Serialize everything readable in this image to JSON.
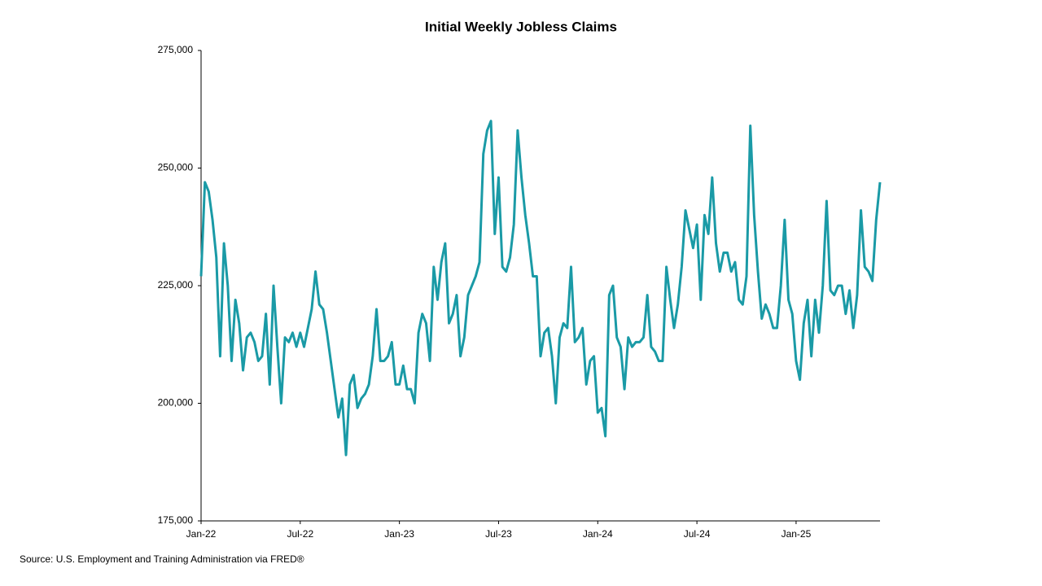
{
  "chart_data": {
    "type": "line",
    "title": "Initial Weekly Jobless Claims",
    "source": "Source: U.S. Employment and Training Administration via FRED®",
    "color": "#1a9aa6",
    "categories": [
      "Jan-22",
      null,
      null,
      null,
      null,
      null,
      null,
      null,
      null,
      null,
      null,
      null,
      null,
      null,
      null,
      null,
      null,
      null,
      null,
      null,
      null,
      null,
      null,
      null,
      null,
      null,
      "Jul-22",
      null,
      null,
      null,
      null,
      null,
      null,
      null,
      null,
      null,
      null,
      null,
      null,
      null,
      null,
      null,
      null,
      null,
      null,
      null,
      null,
      null,
      null,
      null,
      null,
      null,
      "Jan-23",
      null,
      null,
      null,
      null,
      null,
      null,
      null,
      null,
      null,
      null,
      null,
      null,
      null,
      null,
      null,
      null,
      null,
      null,
      null,
      null,
      null,
      null,
      null,
      null,
      null,
      "Jul-23",
      null,
      null,
      null,
      null,
      null,
      null,
      null,
      null,
      null,
      null,
      null,
      null,
      null,
      null,
      null,
      null,
      null,
      null,
      null,
      null,
      null,
      null,
      null,
      null,
      null,
      "Jan-24",
      null,
      null,
      null,
      null,
      null,
      null,
      null,
      null,
      null,
      null,
      null,
      null,
      null,
      null,
      null,
      null,
      null,
      null,
      null,
      null,
      null,
      null,
      null,
      null,
      null,
      "Jul-24",
      null,
      null,
      null,
      null,
      null,
      null,
      null,
      null,
      null,
      null,
      null,
      null,
      null,
      null,
      null,
      null,
      null,
      null,
      null,
      null,
      null,
      null,
      null,
      null,
      null,
      "Jan-25",
      null,
      null,
      null,
      null,
      null,
      null,
      null,
      null,
      null,
      null,
      null,
      null,
      null,
      null,
      null,
      null,
      null,
      null,
      null,
      null,
      null,
      null
    ],
    "values": [
      227000,
      247000,
      245000,
      239000,
      231000,
      210000,
      234000,
      225000,
      209000,
      222000,
      217000,
      207000,
      214000,
      215000,
      213000,
      209000,
      210000,
      219000,
      204000,
      225000,
      212000,
      200000,
      214000,
      213000,
      215000,
      212000,
      215000,
      212000,
      216000,
      220000,
      228000,
      221000,
      220000,
      215000,
      209000,
      203000,
      197000,
      201000,
      189000,
      204000,
      206000,
      199000,
      201000,
      202000,
      204000,
      210000,
      220000,
      209000,
      209000,
      210000,
      213000,
      204000,
      204000,
      208000,
      203000,
      203000,
      200000,
      215000,
      219000,
      217000,
      209000,
      229000,
      222000,
      230000,
      234000,
      217000,
      219000,
      223000,
      210000,
      214000,
      223000,
      225000,
      227000,
      230000,
      253000,
      258000,
      260000,
      236000,
      248000,
      229000,
      228000,
      231000,
      238000,
      258000,
      248000,
      240000,
      234000,
      227000,
      227000,
      210000,
      215000,
      216000,
      210000,
      200000,
      214000,
      217000,
      216000,
      229000,
      213000,
      214000,
      216000,
      204000,
      209000,
      210000,
      198000,
      199000,
      193000,
      223000,
      225000,
      214000,
      212000,
      203000,
      214000,
      212000,
      213000,
      213000,
      214000,
      223000,
      212000,
      211000,
      209000,
      209000,
      229000,
      222000,
      216000,
      221000,
      229000,
      241000,
      237000,
      233000,
      238000,
      222000,
      240000,
      236000,
      248000,
      234000,
      228000,
      232000,
      232000,
      228000,
      230000,
      222000,
      221000,
      227000,
      259000,
      240000,
      228000,
      218000,
      221000,
      219000,
      216000,
      216000,
      225000,
      239000,
      222000,
      219000,
      209000,
      205000,
      217000,
      222000,
      210000,
      222000,
      215000,
      225000,
      243000,
      224000,
      223000,
      225000,
      225000,
      219000,
      224000,
      216000,
      223000,
      241000,
      229000,
      228000,
      226000,
      239000,
      247000
    ],
    "ylim": [
      175000,
      275000
    ],
    "yticks": [
      {
        "value": 175000,
        "label": "175,000"
      },
      {
        "value": 200000,
        "label": "200,000"
      },
      {
        "value": 225000,
        "label": "225,000"
      },
      {
        "value": 250000,
        "label": "250,000"
      },
      {
        "value": 275000,
        "label": "275,000"
      }
    ],
    "grid": false
  }
}
